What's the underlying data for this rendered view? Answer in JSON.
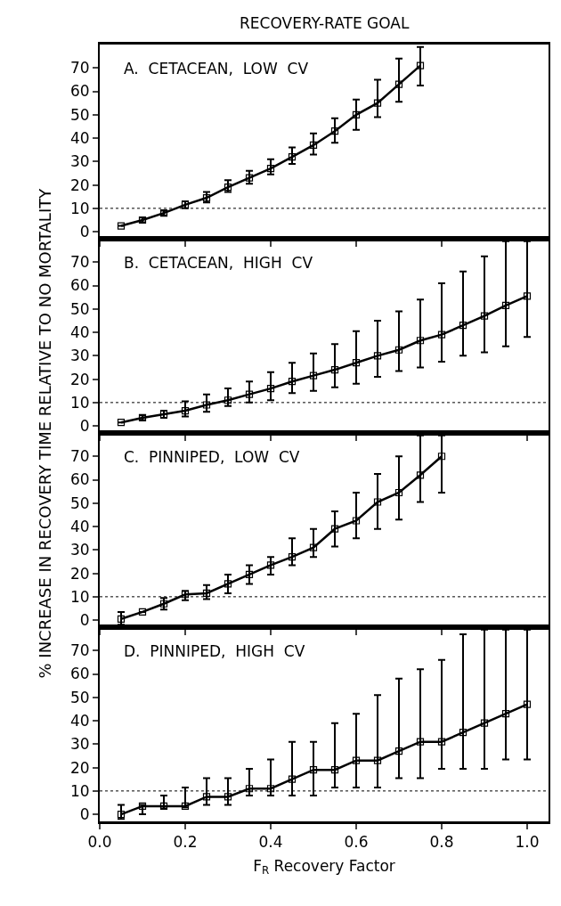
{
  "chart_data": [
    {
      "type": "line",
      "title": "RECOVERY-RATE GOAL",
      "ylabel": "% INCREASE IN RECOVERY TIME RELATIVE TO NO MORTALITY",
      "annotations": [
        "A.  CETACEAN,  LOW  CV"
      ],
      "series": [
        {
          "color": "#000000",
          "x": [
            0.05,
            0.1,
            0.15,
            0.2,
            0.25,
            0.3,
            0.35,
            0.4,
            0.45,
            0.5,
            0.55,
            0.6,
            0.65,
            0.7,
            0.75
          ],
          "values": [
            2.5,
            5,
            8,
            11.5,
            14.5,
            19,
            23,
            27,
            32,
            37,
            43,
            50,
            55,
            63,
            71
          ],
          "errors": [
            null,
            [
              4,
              6
            ],
            [
              7,
              9
            ],
            [
              10,
              13
            ],
            [
              12.5,
              17
            ],
            [
              17,
              22
            ],
            [
              20.5,
              26
            ],
            [
              24.5,
              31
            ],
            [
              29,
              36
            ],
            [
              33,
              42
            ],
            [
              38,
              48.5
            ],
            [
              43.5,
              56.5
            ],
            [
              49,
              65
            ],
            [
              55.5,
              74
            ],
            [
              62.5,
              79
            ]
          ]
        }
      ],
      "xlim": [
        0,
        1.05
      ],
      "xticks": [
        {
          "value": 0,
          "label": null
        },
        {
          "value": 0.2,
          "label": null
        },
        {
          "value": 0.4,
          "label": null
        },
        {
          "value": 0.6,
          "label": null
        },
        {
          "value": 0.8,
          "label": null
        },
        {
          "value": 1.0,
          "label": null
        }
      ],
      "ylim": [
        -3,
        80
      ],
      "yticks": [
        0,
        10,
        20,
        30,
        40,
        50,
        60,
        70
      ],
      "tick_labels": "y",
      "marker": "square",
      "line_style": "solid",
      "ref_lines": [
        {
          "axis": "y",
          "value": 10,
          "line_style": "dotted"
        }
      ]
    },
    {
      "type": "line",
      "annotations": [
        "B.  CETACEAN,  HIGH  CV"
      ],
      "x": [
        0.05,
        0.1,
        0.15,
        0.2,
        0.25,
        0.3,
        0.35,
        0.4,
        0.45,
        0.5,
        0.55,
        0.6,
        0.65,
        0.7,
        0.75,
        0.8,
        0.85,
        0.9,
        0.95,
        1.0
      ],
      "series": [
        {
          "color": "#000000",
          "values": [
            1.5,
            3.5,
            5,
            6.5,
            9,
            11,
            13.5,
            16,
            19,
            21.5,
            24,
            27,
            30,
            32.5,
            36.5,
            39,
            43,
            47,
            51.5,
            55.5
          ],
          "errors": [
            null,
            [
              2.5,
              4.5
            ],
            [
              3.5,
              6.5
            ],
            [
              4,
              10.5
            ],
            [
              6,
              13.5
            ],
            [
              8.5,
              16
            ],
            [
              10,
              19
            ],
            [
              11,
              23
            ],
            [
              14,
              27
            ],
            [
              15,
              31
            ],
            [
              16.5,
              35
            ],
            [
              18,
              40.5
            ],
            [
              21,
              45
            ],
            [
              23.5,
              49
            ],
            [
              25,
              54
            ],
            [
              27.5,
              61
            ],
            [
              30,
              66
            ],
            [
              31.5,
              72.5
            ],
            [
              34,
              79
            ],
            [
              38,
              79
            ]
          ]
        }
      ],
      "xlim": [
        0,
        1.05
      ],
      "xticks": [
        {
          "value": 0,
          "label": null
        },
        {
          "value": 0.2,
          "label": null
        },
        {
          "value": 0.4,
          "label": null
        },
        {
          "value": 0.6,
          "label": null
        },
        {
          "value": 0.8,
          "label": null
        },
        {
          "value": 1.0,
          "label": null
        }
      ],
      "ylim": [
        -3,
        80
      ],
      "yticks": [
        0,
        10,
        20,
        30,
        40,
        50,
        60,
        70
      ],
      "tick_labels": "y",
      "marker": "square",
      "line_style": "solid",
      "ref_lines": [
        {
          "axis": "y",
          "value": 10,
          "line_style": "dotted"
        }
      ]
    },
    {
      "type": "line",
      "annotations": [
        "C.  PINNIPED,  LOW  CV"
      ],
      "series": [
        {
          "color": "#000000",
          "x": [
            0.05,
            0.1,
            0.15,
            0.2,
            0.25,
            0.3,
            0.35,
            0.4,
            0.45,
            0.5,
            0.55,
            0.6,
            0.65,
            0.7,
            0.75,
            0.8
          ],
          "values": [
            0.5,
            3.5,
            7,
            11,
            11.5,
            15.5,
            19.5,
            23.5,
            27,
            31,
            39,
            42.5,
            50.5,
            54.5,
            62,
            70
          ],
          "errors": [
            [
              -2,
              3.5
            ],
            null,
            [
              4.5,
              9.5
            ],
            [
              8.5,
              12.5
            ],
            [
              9,
              15
            ],
            [
              11.5,
              19.5
            ],
            [
              15.5,
              23.5
            ],
            [
              19.5,
              27
            ],
            [
              23.5,
              35
            ],
            [
              27,
              39
            ],
            [
              31.5,
              46.5
            ],
            [
              35,
              54.5
            ],
            [
              39,
              62.5
            ],
            [
              43,
              70
            ],
            [
              50.5,
              79
            ],
            [
              54.5,
              79
            ]
          ]
        }
      ],
      "xlim": [
        0,
        1.05
      ],
      "xticks": [
        {
          "value": 0,
          "label": null
        },
        {
          "value": 0.2,
          "label": null
        },
        {
          "value": 0.4,
          "label": null
        },
        {
          "value": 0.6,
          "label": null
        },
        {
          "value": 0.8,
          "label": null
        },
        {
          "value": 1.0,
          "label": null
        }
      ],
      "ylim": [
        -3,
        80
      ],
      "yticks": [
        0,
        10,
        20,
        30,
        40,
        50,
        60,
        70
      ],
      "tick_labels": "y",
      "marker": "square",
      "line_style": "solid",
      "ref_lines": [
        {
          "axis": "y",
          "value": 10,
          "line_style": "dotted"
        }
      ]
    },
    {
      "type": "line",
      "xlabel": "F$_{R}$ Recovery Factor",
      "annotations": [
        "D.  PINNIPED,  HIGH  CV"
      ],
      "x": [
        0.05,
        0.1,
        0.15,
        0.2,
        0.25,
        0.3,
        0.35,
        0.4,
        0.45,
        0.5,
        0.55,
        0.6,
        0.65,
        0.7,
        0.75,
        0.8,
        0.85,
        0.9,
        0.95,
        1.0
      ],
      "series": [
        {
          "color": "#000000",
          "values": [
            0,
            3.5,
            3.5,
            3.5,
            7.5,
            7.5,
            11,
            11,
            15,
            19,
            19,
            23,
            23,
            27,
            31,
            31,
            35,
            39,
            43,
            47
          ],
          "errors": [
            [
              -2,
              4
            ],
            [
              0,
              4
            ],
            [
              2.5,
              8
            ],
            [
              3,
              11.5
            ],
            [
              4,
              15.5
            ],
            [
              4,
              15.5
            ],
            [
              8,
              19.5
            ],
            [
              8,
              23.5
            ],
            [
              8,
              31
            ],
            [
              8,
              31
            ],
            [
              11.5,
              39
            ],
            [
              11.5,
              43
            ],
            [
              11.5,
              51
            ],
            [
              15.5,
              58
            ],
            [
              15.5,
              62
            ],
            [
              19.5,
              66
            ],
            [
              19.5,
              77
            ],
            [
              19.5,
              79
            ],
            [
              23.5,
              79
            ],
            [
              23.5,
              79
            ]
          ]
        }
      ],
      "xlim": [
        0,
        1.05
      ],
      "xticks": [
        {
          "value": 0,
          "label": "0.0"
        },
        {
          "value": 0.2,
          "label": "0.2"
        },
        {
          "value": 0.4,
          "label": "0.4"
        },
        {
          "value": 0.6,
          "label": "0.6"
        },
        {
          "value": 0.8,
          "label": "0.8"
        },
        {
          "value": 1.0,
          "label": "1.0"
        }
      ],
      "ylim": [
        -3,
        80
      ],
      "yticks": [
        0,
        10,
        20,
        30,
        40,
        50,
        60,
        70
      ],
      "marker": "square",
      "line_style": "solid",
      "ref_lines": [
        {
          "axis": "y",
          "value": 10,
          "line_style": "dotted"
        }
      ]
    }
  ]
}
